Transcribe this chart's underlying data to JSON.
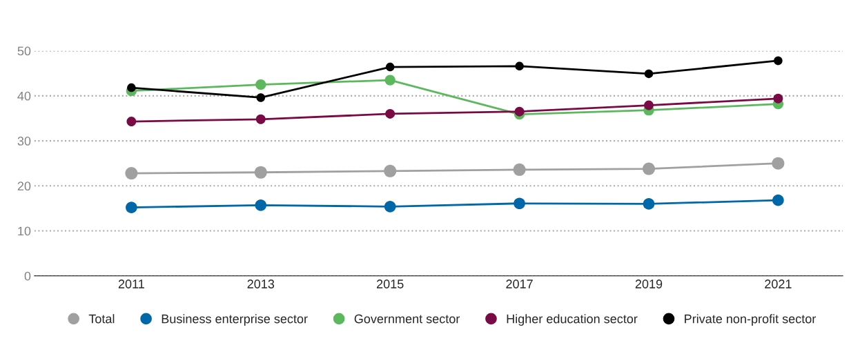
{
  "chart_data": {
    "type": "line",
    "x": [
      2011,
      2013,
      2015,
      2017,
      2019,
      2021
    ],
    "series": [
      {
        "name": "Total",
        "color": "#a0a0a0",
        "values": [
          22.8,
          23.0,
          23.3,
          23.6,
          23.8,
          25.0
        ]
      },
      {
        "name": "Business enterprise sector",
        "color": "#0068a8",
        "values": [
          15.2,
          15.7,
          15.4,
          16.1,
          16.0,
          16.8
        ]
      },
      {
        "name": "Government sector",
        "color": "#5cb85c",
        "values": [
          41.1,
          42.5,
          43.5,
          35.9,
          36.8,
          38.2
        ]
      },
      {
        "name": "Higher education sector",
        "color": "#7a0a45",
        "values": [
          34.3,
          34.8,
          36.0,
          36.5,
          37.9,
          39.4
        ]
      },
      {
        "name": "Private non-profit sector",
        "color": "#000000",
        "values": [
          41.8,
          39.6,
          46.4,
          46.6,
          44.9,
          47.8
        ]
      }
    ],
    "xlim": [
      2009.5,
      2022
    ],
    "xticks": [
      2011,
      2013,
      2015,
      2017,
      2019,
      2021
    ],
    "ylim": [
      0,
      50
    ],
    "yticks": [
      0,
      10,
      20,
      30,
      40,
      50
    ],
    "grid": "y",
    "legend": "bottom",
    "marker": "circle",
    "line_style": "solid"
  }
}
